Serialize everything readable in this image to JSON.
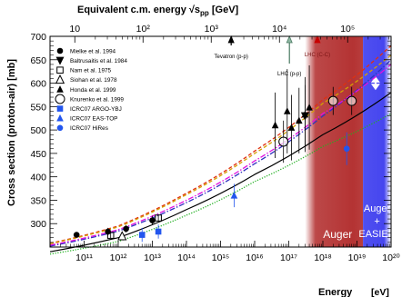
{
  "chart_data": {
    "type": "scatter",
    "title": "",
    "xlabel": "Energy",
    "xlabel_unit": "[eV]",
    "ylabel": "Cross section (proton-air)",
    "ylabel_unit": "[mb]",
    "x_scale": "log",
    "xlim": [
      10000000000.0,
      1e+20
    ],
    "ylim": [
      250,
      700
    ],
    "x_tick_labels": [
      {
        "v": 100000000000.0,
        "t": "10¹¹"
      },
      {
        "v": 1000000000000.0,
        "t": "10¹²"
      },
      {
        "v": 10000000000000.0,
        "t": "10¹³"
      },
      {
        "v": 100000000000000.0,
        "t": "10¹⁴"
      },
      {
        "v": 1000000000000000.0,
        "t": "10¹⁵"
      },
      {
        "v": 1e+16,
        "t": "10¹⁶"
      },
      {
        "v": 1e+17,
        "t": "10¹⁷"
      },
      {
        "v": 1e+18,
        "t": "10¹⁸"
      },
      {
        "v": 1e+19,
        "t": "10¹⁹"
      },
      {
        "v": 1e+20,
        "t": "10²⁰"
      }
    ],
    "y_ticks": [
      300,
      350,
      400,
      450,
      500,
      550,
      600,
      650,
      700
    ],
    "top_axis": {
      "label": "Equivalent c.m. energy",
      "symbol": "√s",
      "subscript": "pp",
      "unit": "[GeV]",
      "scale": "log",
      "tick_labels": [
        {
          "v": 10,
          "t": "10"
        },
        {
          "v": 100,
          "t": "10²"
        },
        {
          "v": 1000,
          "t": "10³"
        },
        {
          "v": 10000,
          "t": "10⁴"
        },
        {
          "v": 100000,
          "t": "10⁵"
        }
      ]
    },
    "energy_markers": [
      {
        "label": "Tevatron (p-p)",
        "sqrt_s_gev": 1960,
        "color": "#000000"
      },
      {
        "label": "LHC (p-p)",
        "sqrt_s_gev": 14000,
        "color": "#4a7a62"
      },
      {
        "label": "LHC (C-C)",
        "sqrt_s_gev": 36000,
        "color": "#c80000"
      }
    ],
    "bands": [
      {
        "label": "Auger",
        "x_range": [
          3e+17,
          1.5e+19
        ],
        "color": "#b02828"
      },
      {
        "label": "Auger + EASIER",
        "x_range": [
          1.5e+19,
          3e+20
        ],
        "color": "#3c3cee"
      }
    ],
    "band_label_lines": [
      "Auger",
      "+",
      "EASIER"
    ],
    "series": [
      {
        "name": "Mielke et al. 1994",
        "marker": "circle-filled",
        "color": "#000000",
        "points": [
          {
            "x": 60000000000.0,
            "y": 276,
            "e": 4
          },
          {
            "x": 500000000000.0,
            "y": 283,
            "e": 8
          },
          {
            "x": 1700000000000.0,
            "y": 289,
            "e": 8
          },
          {
            "x": 10000000000000.0,
            "y": 307,
            "e": 10
          }
        ]
      },
      {
        "name": "Baltrusaitis et al. 1984",
        "marker": "triangle-down-filled",
        "color": "#000000",
        "points": [
          {
            "x": 3e+17,
            "y": 530,
            "e": 66
          }
        ]
      },
      {
        "name": "Nam et al. 1975",
        "marker": "square-open",
        "color": "#000000",
        "points": [
          {
            "x": 600000000000.0,
            "y": 275,
            "e": 6
          },
          {
            "x": 15000000000000.0,
            "y": 312,
            "e": 8
          }
        ]
      },
      {
        "name": "Siohan et al. 1978",
        "marker": "triangle-open",
        "color": "#000000",
        "points": [
          {
            "x": 1300000000000.0,
            "y": 273,
            "e": 6
          }
        ]
      },
      {
        "name": "Honda et al. 1999",
        "marker": "triangle-filled",
        "color": "#000000",
        "points": [
          {
            "x": 4e+16,
            "y": 510,
            "e": 70
          },
          {
            "x": 1.2e+17,
            "y": 505,
            "e": 70
          },
          {
            "x": 2e+17,
            "y": 520,
            "e": 70
          },
          {
            "x": 3e+17,
            "y": 533,
            "e": 80
          },
          {
            "x": 4e+17,
            "y": 548,
            "e": 90
          },
          {
            "x": 9e+16,
            "y": 540,
            "e": 90
          }
        ]
      },
      {
        "name": "Knurenko et al. 1999",
        "marker": "circle-open",
        "color": "#000000",
        "points": [
          {
            "x": 7e+16,
            "y": 475,
            "e": 45
          },
          {
            "x": 2e+18,
            "y": 562,
            "e": 30
          },
          {
            "x": 7e+18,
            "y": 562,
            "e": 30
          }
        ]
      },
      {
        "name": "ICRC07 ARGO-YBJ",
        "marker": "square-filled",
        "color": "#2255ee",
        "points": [
          {
            "x": 15000000000000.0,
            "y": 283,
            "e": 15
          },
          {
            "x": 5000000000000.0,
            "y": 276,
            "e": 15
          }
        ]
      },
      {
        "name": "ICRC07 EAS-TOP",
        "marker": "triangle-filled",
        "color": "#2255ee",
        "points": [
          {
            "x": 2500000000000000.0,
            "y": 360,
            "e": 25
          }
        ]
      },
      {
        "name": "ICRC07 HiRes",
        "marker": "circle-filled",
        "color": "#2255ee",
        "points": [
          {
            "x": 5e+18,
            "y": 460,
            "e": 35
          }
        ]
      }
    ],
    "model_curves": [
      {
        "style": "solid",
        "color": "#000000",
        "points": [
          [
            10000000000.0,
            240
          ],
          [
            1000000000000.0,
            270
          ],
          [
            100000000000000.0,
            330
          ],
          [
            1e+16,
            405
          ],
          [
            1e+18,
            490
          ],
          [
            1e+20,
            580
          ]
        ]
      },
      {
        "style": "dashed",
        "color": "#e03010",
        "points": [
          [
            10000000000.0,
            258
          ],
          [
            1000000000000.0,
            295
          ],
          [
            100000000000000.0,
            365
          ],
          [
            1e+16,
            455
          ],
          [
            1e+18,
            565
          ],
          [
            1e+20,
            680
          ]
        ]
      },
      {
        "style": "dashed",
        "color": "#d4a000",
        "points": [
          [
            10000000000.0,
            257
          ],
          [
            1000000000000.0,
            293
          ],
          [
            100000000000000.0,
            362
          ],
          [
            1e+16,
            450
          ],
          [
            1e+18,
            557
          ],
          [
            1e+20,
            660
          ]
        ]
      },
      {
        "style": "dashdot",
        "color": "#3030c0",
        "points": [
          [
            10000000000.0,
            252
          ],
          [
            1000000000000.0,
            284
          ],
          [
            100000000000000.0,
            345
          ],
          [
            1e+16,
            428
          ],
          [
            1e+18,
            530
          ],
          [
            1e+20,
            650
          ]
        ]
      },
      {
        "style": "dashdot",
        "color": "#e010e0",
        "points": [
          [
            10000000000.0,
            254
          ],
          [
            1000000000000.0,
            287
          ],
          [
            100000000000000.0,
            350
          ],
          [
            1e+16,
            434
          ],
          [
            1e+18,
            535
          ],
          [
            1e+20,
            640
          ]
        ]
      },
      {
        "style": "dotted",
        "color": "#20b020",
        "points": [
          [
            10000000000.0,
            235
          ],
          [
            1000000000000.0,
            262
          ],
          [
            100000000000000.0,
            318
          ],
          [
            1e+16,
            390
          ],
          [
            1e+18,
            465
          ],
          [
            1e+20,
            535
          ]
        ]
      }
    ],
    "legend_position": "upper-left",
    "grid": false
  }
}
